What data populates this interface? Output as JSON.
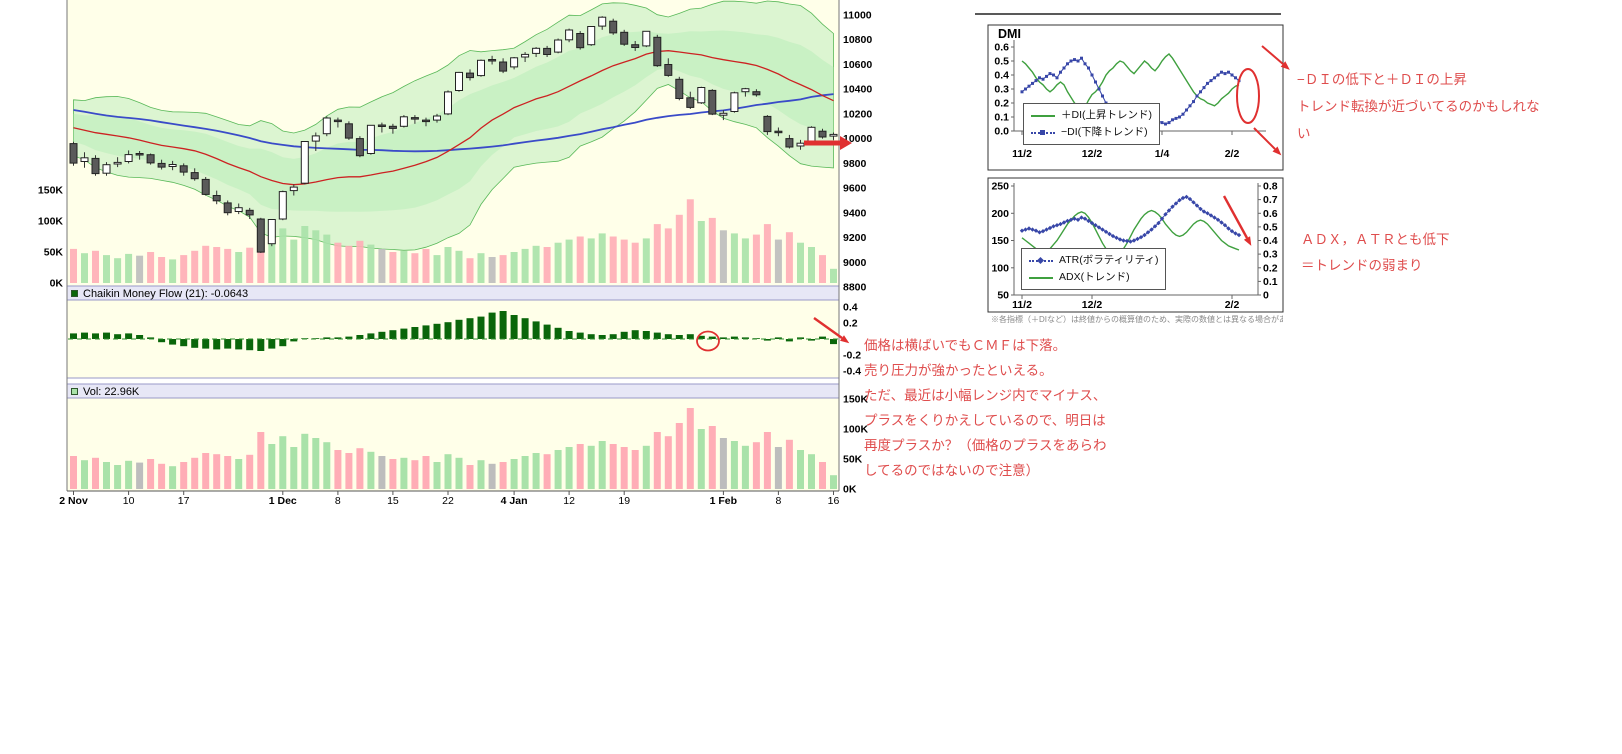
{
  "colors": {
    "panel_bg": "#FFFFE9",
    "strip_bg": "#E7E7F6",
    "band_fill": "#B9ECB9",
    "band_edge": "#58B858",
    "ma_fast": "#CC2222",
    "ma_slow": "#3A4BC8",
    "candle_up": "#FFFFFF",
    "candle_down": "#5A5A5A",
    "vol_up": "#A9E2A9",
    "vol_down": "#FFADB6",
    "vol_flat": "#BDBDBD",
    "cmf_bar": "#0A660A",
    "di_plus": "#3FA03F",
    "di_minus": "#3847A8",
    "atr": "#3847A8",
    "adx": "#3FA03F",
    "annotation_shape": "#E03030",
    "annotation_text": "#DF4D4D"
  },
  "panel_labels": {
    "cmf": "Chaikin Money Flow (21): -0.0643",
    "vol": "Vol: 22.96K"
  },
  "dmi_title": "DMI",
  "legends": {
    "dmi": [
      "＋DI(上昇トレンド)",
      "−DI(下降トレンド)"
    ],
    "atr": [
      "ATR(ボラティリティ)",
      "ADX(トレンド)"
    ]
  },
  "caption": "※各指標（＋DIなど）は終値からの概算値のため、実際の数値とは異なる場合があります。",
  "annotations": {
    "dmi_note": [
      "−ＤＩの低下と＋ＤＩの上昇",
      "トレンド転換が近づいてるのかもしれな",
      "い"
    ],
    "atr_note": [
      "ＡＤＸ，ＡＴＲとも低下",
      "＝トレンドの弱まり"
    ],
    "cmf_note": [
      "価格は横ばいでもＣＭＦは下落。",
      "売り圧力が強かったといえる。",
      "ただ、最近は小幅レンジ内でマイナス、",
      "プラスをくりかえしているので、明日は",
      "再度プラスか？（価格のプラスをあらわ",
      "してるのではないので注意）"
    ]
  },
  "chart_data": [
    {
      "type": "candlestick",
      "name": "price",
      "ylim": [
        8800,
        11000
      ],
      "y_tick_labels": [
        "11000",
        "10800",
        "10600",
        "10400",
        "10200",
        "10000",
        "9800",
        "9600",
        "9400",
        "9200",
        "9000",
        "8800"
      ],
      "volume_overlay_tick_labels": [
        "150K",
        "100K",
        "50K",
        "0K"
      ],
      "x_ticks": [
        {
          "i": 0,
          "label": "2 Nov",
          "bold": true
        },
        {
          "i": 5,
          "label": "10"
        },
        {
          "i": 10,
          "label": "17"
        },
        {
          "i": 19,
          "label": "1 Dec",
          "bold": true
        },
        {
          "i": 24,
          "label": "8"
        },
        {
          "i": 29,
          "label": "15"
        },
        {
          "i": 34,
          "label": "22"
        },
        {
          "i": 40,
          "label": "4 Jan",
          "bold": true
        },
        {
          "i": 45,
          "label": "12"
        },
        {
          "i": 50,
          "label": "19"
        },
        {
          "i": 59,
          "label": "1 Feb",
          "bold": true
        },
        {
          "i": 64,
          "label": "8"
        },
        {
          "i": 69,
          "label": "16"
        }
      ],
      "overlays": [
        "Bollinger(20,2)",
        "SMA20",
        "SMA50",
        "volume"
      ],
      "dates": [
        "11/2",
        "11/4",
        "11/5",
        "11/6",
        "11/9",
        "11/10",
        "11/11",
        "11/12",
        "11/13",
        "11/16",
        "11/17",
        "11/18",
        "11/19",
        "11/20",
        "11/24",
        "11/25",
        "11/26",
        "11/27",
        "11/30",
        "12/1",
        "12/2",
        "12/3",
        "12/4",
        "12/7",
        "12/8",
        "12/9",
        "12/10",
        "12/11",
        "12/14",
        "12/15",
        "12/16",
        "12/17",
        "12/18",
        "12/21",
        "12/22",
        "12/24",
        "12/25",
        "12/28",
        "12/29",
        "12/30",
        "1/4",
        "1/5",
        "1/6",
        "1/7",
        "1/8",
        "1/12",
        "1/13",
        "1/14",
        "1/15",
        "1/18",
        "1/19",
        "1/20",
        "1/21",
        "1/22",
        "1/25",
        "1/26",
        "1/27",
        "1/28",
        "1/29",
        "2/1",
        "2/2",
        "2/3",
        "2/4",
        "2/5",
        "2/8",
        "2/9",
        "2/10",
        "2/12",
        "2/15",
        "2/16"
      ],
      "open": [
        9960,
        9815,
        9840,
        9720,
        9795,
        9815,
        9880,
        9870,
        9800,
        9775,
        9780,
        9725,
        9670,
        9540,
        9480,
        9410,
        9420,
        9350,
        9150,
        9350,
        9580,
        9640,
        9980,
        10040,
        10150,
        10120,
        10000,
        9880,
        10110,
        10100,
        10100,
        10170,
        10150,
        10150,
        10200,
        10390,
        10530,
        10510,
        10640,
        10620,
        10580,
        10660,
        10690,
        10730,
        10700,
        10800,
        10850,
        10760,
        10910,
        10950,
        10860,
        10760,
        10750,
        10820,
        10600,
        10480,
        10330,
        10290,
        10390,
        10190,
        10220,
        10380,
        10380,
        10180,
        10060,
        10000,
        9940,
        9980,
        10060,
        10020
      ],
      "high": [
        9975,
        9890,
        9865,
        9810,
        9850,
        9905,
        9900,
        9880,
        9830,
        9820,
        9800,
        9760,
        9690,
        9580,
        9500,
        9475,
        9440,
        9360,
        9350,
        9580,
        9630,
        9980,
        10050,
        10180,
        10170,
        10140,
        10020,
        10110,
        10130,
        10120,
        10190,
        10190,
        10170,
        10200,
        10390,
        10540,
        10560,
        10640,
        10670,
        10650,
        10660,
        10700,
        10740,
        10750,
        10810,
        10890,
        10870,
        10910,
        10990,
        10970,
        10880,
        10790,
        10870,
        10840,
        10650,
        10500,
        10380,
        10420,
        10400,
        10230,
        10380,
        10410,
        10400,
        10190,
        10090,
        10030,
        9990,
        10100,
        10080,
        10050
      ],
      "low": [
        9780,
        9765,
        9700,
        9700,
        9770,
        9800,
        9830,
        9790,
        9750,
        9745,
        9700,
        9660,
        9540,
        9470,
        9380,
        9390,
        9350,
        9076,
        9130,
        9340,
        9540,
        9630,
        9900,
        10020,
        10090,
        9990,
        9850,
        9870,
        10050,
        10040,
        10090,
        10120,
        10100,
        10130,
        10190,
        10380,
        10470,
        10500,
        10600,
        10530,
        10560,
        10620,
        10660,
        10660,
        10690,
        10780,
        10720,
        10750,
        10880,
        10840,
        10750,
        10710,
        10740,
        10580,
        10500,
        10310,
        10240,
        10280,
        10190,
        10150,
        10210,
        10340,
        10340,
        10030,
        10020,
        9920,
        9910,
        9970,
        10000,
        9990
      ],
      "close": [
        9802,
        9845,
        9717,
        9789,
        9808,
        9871,
        9872,
        9804,
        9770,
        9791,
        9729,
        9676,
        9549,
        9497,
        9401,
        9441,
        9383,
        9082,
        9346,
        9572,
        9608,
        9977,
        10022,
        10167,
        10140,
        10004,
        9862,
        10108,
        10105,
        10083,
        10177,
        10164,
        10142,
        10183,
        10378,
        10536,
        10494,
        10634,
        10638,
        10546,
        10654,
        10681,
        10731,
        10681,
        10798,
        10879,
        10735,
        10907,
        10982,
        10855,
        10764,
        10737,
        10868,
        10590,
        10512,
        10325,
        10252,
        10414,
        10198,
        10205,
        10371,
        10404,
        10355,
        10057,
        10050,
        9932,
        9963,
        10092,
        10013,
        10034
      ]
    },
    {
      "type": "bar",
      "name": "Chaikin Money Flow (21)",
      "last_value": -0.0643,
      "ylim": [
        -0.45,
        0.45
      ],
      "y_tick_labels": [
        "0.4",
        "0.2",
        "-0.2",
        "-0.4"
      ],
      "values": [
        0.07,
        0.08,
        0.07,
        0.08,
        0.06,
        0.07,
        0.05,
        0.02,
        -0.04,
        -0.07,
        -0.09,
        -0.11,
        -0.12,
        -0.13,
        -0.12,
        -0.13,
        -0.14,
        -0.15,
        -0.12,
        -0.09,
        -0.03,
        0.01,
        0.01,
        0.02,
        0.02,
        0.03,
        0.05,
        0.07,
        0.09,
        0.11,
        0.13,
        0.15,
        0.17,
        0.19,
        0.21,
        0.24,
        0.26,
        0.28,
        0.33,
        0.35,
        0.3,
        0.26,
        0.22,
        0.18,
        0.14,
        0.1,
        0.08,
        0.06,
        0.05,
        0.06,
        0.09,
        0.11,
        0.1,
        0.08,
        0.06,
        0.05,
        0.06,
        0.04,
        0.03,
        0.02,
        0.03,
        0.02,
        0.01,
        -0.02,
        0.02,
        -0.03,
        0.02,
        -0.02,
        0.03,
        -0.0643
      ]
    },
    {
      "type": "bar",
      "name": "Volume",
      "last_value_label": "22.96K",
      "ylim": [
        0,
        155
      ],
      "y_tick_labels": [
        "150K",
        "100K",
        "50K",
        "0K"
      ],
      "values": [
        55,
        48,
        52,
        45,
        40,
        47,
        44,
        50,
        42,
        38,
        45,
        52,
        60,
        58,
        55,
        50,
        57,
        95,
        75,
        88,
        70,
        92,
        85,
        78,
        65,
        60,
        68,
        62,
        55,
        50,
        52,
        48,
        55,
        45,
        58,
        52,
        40,
        48,
        42,
        45,
        50,
        55,
        60,
        58,
        65,
        70,
        75,
        72,
        80,
        75,
        70,
        65,
        72,
        95,
        88,
        110,
        135,
        100,
        105,
        85,
        80,
        72,
        78,
        95,
        70,
        82,
        65,
        58,
        45,
        22.96
      ]
    },
    {
      "type": "line",
      "name": "DMI",
      "ylim": [
        0,
        0.65
      ],
      "y_tick_labels": [
        "0.6",
        "0.5",
        "0.4",
        "0.3",
        "0.2",
        "0.1",
        "0.0"
      ],
      "x_ticks": [
        {
          "i": 0,
          "label": "11/2"
        },
        {
          "i": 20,
          "label": "12/2"
        },
        {
          "i": 40,
          "label": "1/4"
        },
        {
          "i": 60,
          "label": "2/2"
        }
      ],
      "series": [
        {
          "name": "＋DI(上昇トレンド)",
          "color": "#3FA03F",
          "values": [
            0.5,
            0.48,
            0.45,
            0.42,
            0.38,
            0.35,
            0.33,
            0.3,
            0.28,
            0.3,
            0.33,
            0.35,
            0.33,
            0.28,
            0.24,
            0.2,
            0.18,
            0.15,
            0.17,
            0.22,
            0.26,
            0.28,
            0.31,
            0.35,
            0.4,
            0.43,
            0.45,
            0.48,
            0.5,
            0.49,
            0.46,
            0.43,
            0.41,
            0.44,
            0.47,
            0.5,
            0.48,
            0.45,
            0.43,
            0.46,
            0.5,
            0.53,
            0.55,
            0.52,
            0.48,
            0.44,
            0.4,
            0.36,
            0.32,
            0.28,
            0.25,
            0.23,
            0.22,
            0.2,
            0.19,
            0.18,
            0.2,
            0.23,
            0.25,
            0.27,
            0.3,
            0.32,
            0.33
          ]
        },
        {
          "name": "−DI(下降トレンド)",
          "color": "#3847A8",
          "values": [
            0.28,
            0.3,
            0.32,
            0.34,
            0.36,
            0.38,
            0.37,
            0.39,
            0.41,
            0.4,
            0.38,
            0.42,
            0.45,
            0.48,
            0.5,
            0.51,
            0.5,
            0.52,
            0.48,
            0.45,
            0.4,
            0.35,
            0.3,
            0.25,
            0.2,
            0.17,
            0.14,
            0.12,
            0.1,
            0.09,
            0.1,
            0.12,
            0.11,
            0.09,
            0.08,
            0.07,
            0.08,
            0.1,
            0.09,
            0.07,
            0.06,
            0.05,
            0.06,
            0.08,
            0.09,
            0.1,
            0.12,
            0.15,
            0.18,
            0.21,
            0.25,
            0.28,
            0.31,
            0.34,
            0.36,
            0.38,
            0.4,
            0.42,
            0.41,
            0.42,
            0.4,
            0.38,
            0.36
          ]
        }
      ]
    },
    {
      "type": "line",
      "name": "ATR/ADX",
      "left_ylim": [
        50,
        255
      ],
      "right_ylim": [
        0,
        0.85
      ],
      "left_tick_labels": [
        "250",
        "200",
        "150",
        "100",
        "50"
      ],
      "right_tick_labels": [
        "0.8",
        "0.7",
        "0.6",
        "0.5",
        "0.4",
        "0.3",
        "0.2",
        "0.1",
        "0"
      ],
      "x_ticks": [
        {
          "i": 0,
          "label": "11/2"
        },
        {
          "i": 20,
          "label": "12/2"
        },
        {
          "i": 60,
          "label": "2/2"
        }
      ],
      "series": [
        {
          "name": "ATR(ボラティリティ)",
          "axis": "left",
          "color": "#3847A8",
          "values": [
            168,
            170,
            172,
            170,
            168,
            165,
            167,
            170,
            173,
            176,
            178,
            180,
            183,
            186,
            188,
            190,
            188,
            192,
            190,
            186,
            182,
            178,
            174,
            170,
            166,
            162,
            158,
            155,
            152,
            150,
            149,
            148,
            150,
            153,
            156,
            160,
            165,
            170,
            176,
            182,
            190,
            198,
            205,
            212,
            218,
            224,
            228,
            230,
            226,
            220,
            214,
            208,
            203,
            200,
            196,
            192,
            188,
            183,
            178,
            172,
            167,
            163,
            160
          ]
        },
        {
          "name": "ADX(トレンド)",
          "axis": "right",
          "color": "#3FA03F",
          "values": [
            0.42,
            0.4,
            0.38,
            0.36,
            0.34,
            0.32,
            0.31,
            0.32,
            0.34,
            0.37,
            0.4,
            0.44,
            0.48,
            0.52,
            0.55,
            0.58,
            0.6,
            0.61,
            0.6,
            0.57,
            0.53,
            0.48,
            0.43,
            0.38,
            0.34,
            0.31,
            0.29,
            0.28,
            0.3,
            0.34,
            0.38,
            0.43,
            0.48,
            0.52,
            0.56,
            0.59,
            0.61,
            0.62,
            0.61,
            0.59,
            0.56,
            0.52,
            0.49,
            0.46,
            0.44,
            0.43,
            0.44,
            0.46,
            0.49,
            0.52,
            0.54,
            0.55,
            0.54,
            0.52,
            0.49,
            0.46,
            0.43,
            0.4,
            0.38,
            0.36,
            0.35,
            0.34,
            0.33
          ]
        }
      ]
    }
  ]
}
